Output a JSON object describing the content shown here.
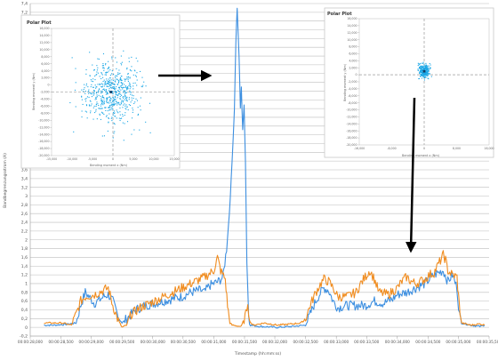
{
  "colors": {
    "series_blue": "#3d8fe0",
    "series_orange": "#f08c1f",
    "grid": "#bdbdbd",
    "axis_text": "#555555",
    "scatter": "#1aa7e6",
    "arrow": "#000000"
  },
  "chart_data": [
    {
      "type": "line",
      "ylabel": "Bandbegrenzungsstrom (A)",
      "xlabel": "Timestamp (hh:mm:ss)",
      "ylim": [
        -0.2,
        7.4
      ],
      "xlim": [
        0,
        100
      ],
      "grid": true,
      "legend": "none",
      "y_ticks": [
        "-0,2",
        "0",
        "0,2",
        "0,4",
        "0,6",
        "0,8",
        "1",
        "1,2",
        "1,4",
        "1,6",
        "1,8",
        "2",
        "2,2",
        "2,4",
        "2,6",
        "2,8",
        "3",
        "3,2",
        "3,4",
        "3,6",
        "3,8",
        "4",
        "4,2",
        "4,4",
        "4,6",
        "4,8",
        "5",
        "5,2",
        "5,4",
        "5,6",
        "5,8",
        "6",
        "6,2",
        "6,4",
        "6,6",
        "6,8",
        "7",
        "7,2",
        "7,4"
      ],
      "x_ticks": [
        {
          "x": 0,
          "label": "00:00:28,000"
        },
        {
          "x": 6.7,
          "label": "00:00:28,500"
        },
        {
          "x": 13.3,
          "label": "00:00:29,000"
        },
        {
          "x": 20,
          "label": "00:00:29,500"
        },
        {
          "x": 26.7,
          "label": "00:00:30,000"
        },
        {
          "x": 33.3,
          "label": "00:00:30,500"
        },
        {
          "x": 40,
          "label": "00:00:31,000"
        },
        {
          "x": 46.7,
          "label": "00:00:31,500"
        },
        {
          "x": 53.3,
          "label": "00:00:32,000"
        },
        {
          "x": 60,
          "label": "00:00:32,500"
        },
        {
          "x": 66.7,
          "label": "00:00:33,000"
        },
        {
          "x": 73.3,
          "label": "00:00:33,500"
        },
        {
          "x": 80,
          "label": "00:00:34,000"
        },
        {
          "x": 86.7,
          "label": "00:00:34,500"
        },
        {
          "x": 93.3,
          "label": "00:00:35,000"
        },
        {
          "x": 100,
          "label": "00:00:35,500"
        }
      ],
      "series": [
        {
          "color": "#3d8fe0",
          "points": [
            [
              3,
              0.05
            ],
            [
              5,
              0.05
            ],
            [
              8,
              0.07
            ],
            [
              10,
              0.1
            ],
            [
              11,
              0.5
            ],
            [
              12,
              0.8
            ],
            [
              14,
              0.55
            ],
            [
              16,
              0.7
            ],
            [
              17,
              0.75
            ],
            [
              18,
              0.6
            ],
            [
              19,
              0.3
            ],
            [
              20,
              0.1
            ],
            [
              21,
              0.2
            ],
            [
              23,
              0.4
            ],
            [
              25,
              0.5
            ],
            [
              27,
              0.55
            ],
            [
              29,
              0.6
            ],
            [
              31,
              0.65
            ],
            [
              33,
              0.7
            ],
            [
              35,
              0.8
            ],
            [
              37,
              0.85
            ],
            [
              38,
              0.8
            ],
            [
              39,
              0.95
            ],
            [
              40,
              1.0
            ],
            [
              41,
              1.05
            ],
            [
              42,
              1.15
            ],
            [
              42.8,
              1.8
            ],
            [
              43.4,
              2.6
            ],
            [
              44,
              3.8
            ],
            [
              44.5,
              5.0
            ],
            [
              44.8,
              6.5
            ],
            [
              45.1,
              7.3
            ],
            [
              45.5,
              6.2
            ],
            [
              45.8,
              5.0
            ],
            [
              46,
              5.5
            ],
            [
              46.3,
              4.5
            ],
            [
              46.6,
              5.1
            ],
            [
              46.9,
              3.8
            ],
            [
              47.2,
              1.5
            ],
            [
              47.6,
              0.3
            ],
            [
              48,
              0.05
            ],
            [
              50,
              0.02
            ],
            [
              54,
              0.0
            ],
            [
              57,
              0.02
            ],
            [
              60,
              0.05
            ],
            [
              61,
              0.3
            ],
            [
              62,
              0.55
            ],
            [
              63,
              0.75
            ],
            [
              64,
              0.9
            ],
            [
              65,
              0.85
            ],
            [
              66,
              0.6
            ],
            [
              67,
              0.45
            ],
            [
              69,
              0.5
            ],
            [
              71,
              0.5
            ],
            [
              73,
              0.5
            ],
            [
              74,
              0.55
            ],
            [
              75,
              0.6
            ],
            [
              77,
              0.55
            ],
            [
              79,
              0.65
            ],
            [
              80,
              0.75
            ],
            [
              82,
              0.8
            ],
            [
              84,
              0.9
            ],
            [
              85,
              0.95
            ],
            [
              86,
              1.0
            ],
            [
              87,
              1.1
            ],
            [
              88,
              1.2
            ],
            [
              89,
              1.25
            ],
            [
              90,
              1.3
            ],
            [
              91,
              1.05
            ],
            [
              92,
              1.2
            ],
            [
              93,
              0.9
            ],
            [
              93.5,
              0.3
            ],
            [
              94,
              0.1
            ],
            [
              96,
              0.05
            ],
            [
              98,
              0.02
            ],
            [
              99,
              0.05
            ]
          ]
        },
        {
          "color": "#f08c1f",
          "points": [
            [
              3,
              0.1
            ],
            [
              5,
              0.1
            ],
            [
              7,
              0.1
            ],
            [
              9,
              0.05
            ],
            [
              10,
              0.3
            ],
            [
              11,
              0.6
            ],
            [
              12,
              0.7
            ],
            [
              14,
              0.75
            ],
            [
              15,
              0.8
            ],
            [
              16,
              0.85
            ],
            [
              17,
              0.9
            ],
            [
              18,
              0.5
            ],
            [
              19,
              0.2
            ],
            [
              20,
              0.0
            ],
            [
              21,
              0.05
            ],
            [
              22,
              0.3
            ],
            [
              24,
              0.45
            ],
            [
              26,
              0.55
            ],
            [
              28,
              0.65
            ],
            [
              30,
              0.75
            ],
            [
              32,
              0.85
            ],
            [
              34,
              0.95
            ],
            [
              36,
              1.05
            ],
            [
              38,
              1.15
            ],
            [
              40,
              1.3
            ],
            [
              40.8,
              1.6
            ],
            [
              41.5,
              1.3
            ],
            [
              42.5,
              1.1
            ],
            [
              43,
              0.5
            ],
            [
              43.5,
              0.1
            ],
            [
              44,
              0.05
            ],
            [
              46,
              0.02
            ],
            [
              47,
              0.3
            ],
            [
              47.4,
              0.6
            ],
            [
              47.8,
              0.15
            ],
            [
              48.5,
              0.05
            ],
            [
              51,
              0.1
            ],
            [
              54,
              0.05
            ],
            [
              57,
              0.08
            ],
            [
              59,
              0.1
            ],
            [
              60,
              0.2
            ],
            [
              61,
              0.5
            ],
            [
              62,
              0.75
            ],
            [
              63,
              0.95
            ],
            [
              64,
              1.1
            ],
            [
              65,
              1.05
            ],
            [
              66,
              0.9
            ],
            [
              67,
              0.7
            ],
            [
              69,
              0.7
            ],
            [
              71,
              0.8
            ],
            [
              72,
              1.0
            ],
            [
              73,
              1.15
            ],
            [
              74,
              1.3
            ],
            [
              75,
              1.1
            ],
            [
              76,
              0.8
            ],
            [
              78,
              0.75
            ],
            [
              80,
              0.9
            ],
            [
              81,
              1.05
            ],
            [
              82,
              1.15
            ],
            [
              83,
              1.05
            ],
            [
              84,
              1.0
            ],
            [
              86,
              1.1
            ],
            [
              87,
              1.2
            ],
            [
              88,
              1.25
            ],
            [
              89,
              1.45
            ],
            [
              90,
              1.65
            ],
            [
              90.5,
              1.55
            ],
            [
              91,
              1.3
            ],
            [
              92,
              1.2
            ],
            [
              93,
              1.15
            ],
            [
              93.5,
              0.5
            ],
            [
              94,
              0.1
            ],
            [
              96,
              0.05
            ],
            [
              98,
              0.08
            ],
            [
              99,
              0.05
            ]
          ]
        }
      ]
    },
    {
      "type": "scatter",
      "title": "Polar Plot",
      "xlabel": "Bending moment x (Nm)",
      "ylabel": "Bending moment y (Nm)",
      "xlim": [
        -15000,
        15000
      ],
      "ylim": [
        -20000,
        20000
      ],
      "x_ticks": [
        "-15,000",
        "-10,000",
        "-5,000",
        "0",
        "5,000",
        "10,000",
        "15,000"
      ],
      "y_ticks": [
        "16,000",
        "14,000",
        "12,000",
        "10,000",
        "8,000",
        "6,000",
        "4,000",
        "2,000",
        "0",
        "-2,000",
        "-4,000",
        "-6,000",
        "-8,000",
        "-10,000",
        "-12,000",
        "-14,000",
        "-16,000",
        "-18,000",
        "-20,000"
      ],
      "grid": false,
      "cluster": {
        "center": [
          -500,
          0
        ],
        "spread": [
          3500,
          5000
        ],
        "n": 600
      }
    },
    {
      "type": "scatter",
      "title": "Polar Plot",
      "xlabel": "Bending moment x (Nm)",
      "ylabel": "Bending moment y (Nm)",
      "xlim": [
        -16000,
        16000
      ],
      "ylim": [
        -20000,
        16000
      ],
      "x_ticks": [
        "-16,000",
        "-8,000",
        "0",
        "8,000",
        "16,000"
      ],
      "y_ticks": [
        "16,000",
        "14,000",
        "12,000",
        "10,000",
        "8,000",
        "6,000",
        "4,000",
        "2,000",
        "0",
        "-2,000",
        "-4,000",
        "-6,000",
        "-8,000",
        "-10,000",
        "-12,000",
        "-14,000",
        "-16,000",
        "-18,000",
        "-20,000"
      ],
      "grid": false,
      "cluster": {
        "center": [
          0,
          1000
        ],
        "spread": [
          700,
          1000
        ],
        "n": 260
      }
    }
  ]
}
